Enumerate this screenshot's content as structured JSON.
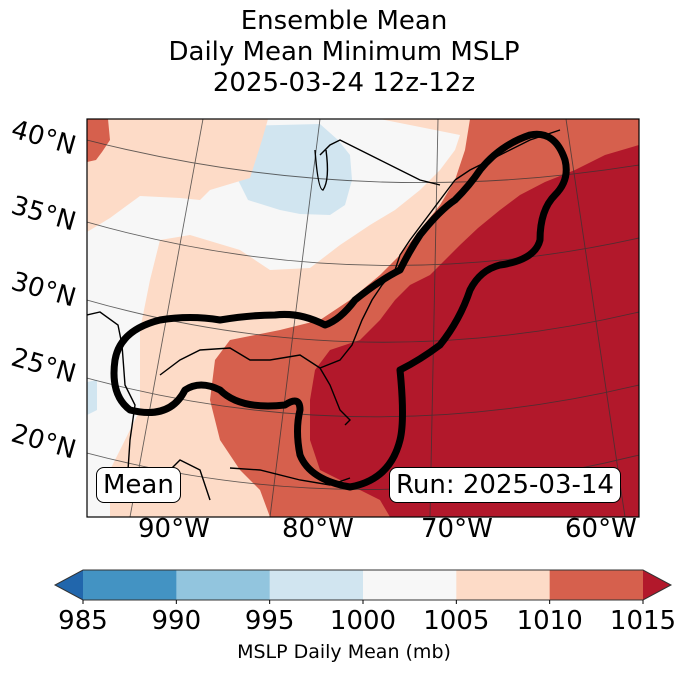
{
  "title": {
    "line1": "Ensemble Mean",
    "line2": "Daily Mean Minimum MSLP",
    "line3": "2025-03-24 12z-12z"
  },
  "map": {
    "variable": "MSLP Daily Mean (mb)",
    "lat_labels": [
      "40°N",
      "35°N",
      "30°N",
      "25°N",
      "20°N"
    ],
    "lon_labels": [
      "90°W",
      "80°W",
      "70°W",
      "60°W"
    ],
    "annotations": {
      "left_box": "Mean",
      "right_box": "Run: 2025-03-14"
    },
    "contour": "Thick black outline of low-pressure track region along Gulf Coast and US East Coast"
  },
  "colorbar": {
    "label": "MSLP Daily Mean (mb)",
    "ticks": [
      "985",
      "990",
      "995",
      "1000",
      "1005",
      "1010",
      "1015"
    ],
    "extend": "both",
    "bins": [
      {
        "range": "<985",
        "color": "#2166ac"
      },
      {
        "range": "985-990",
        "color": "#4393c3"
      },
      {
        "range": "990-995",
        "color": "#92c5de"
      },
      {
        "range": "995-1000",
        "color": "#d1e5f0"
      },
      {
        "range": "1000-1005",
        "color": "#f7f7f7"
      },
      {
        "range": "1005-1010",
        "color": "#fddbc7"
      },
      {
        "range": "1010-1015",
        "color": "#d6604d"
      },
      {
        "range": ">1015",
        "color": "#b2182b"
      }
    ]
  }
}
